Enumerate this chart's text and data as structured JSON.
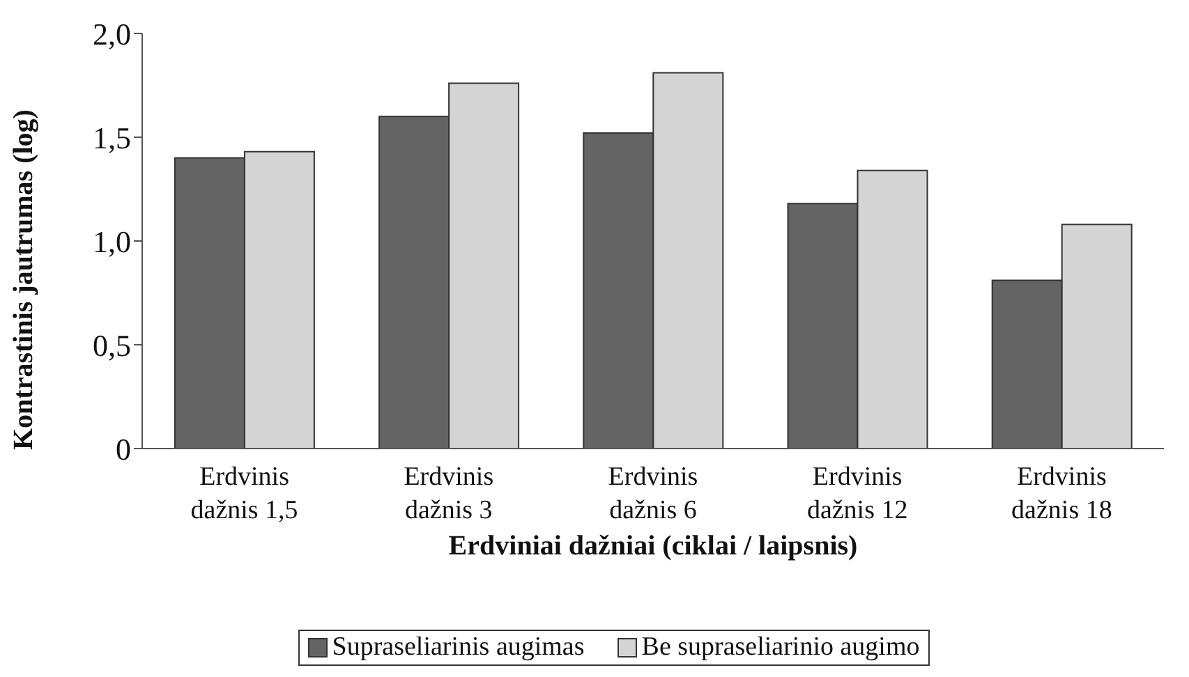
{
  "chart_data": {
    "type": "bar",
    "xlabel": "Erdviniai dažniai (ciklai / laipsnis)",
    "ylabel": "Kontrastinis jautrumas (log)",
    "categories": [
      "Erdvinis\ndažnis 1,5",
      "Erdvinis\ndažnis 3",
      "Erdvinis\ndažnis 6",
      "Erdvinis\ndažnis 12",
      "Erdvinis\ndažnis 18"
    ],
    "series": [
      {
        "name": "Supraseliarinis augimas",
        "color": "#646464",
        "values": [
          1.4,
          1.6,
          1.52,
          1.18,
          0.81
        ]
      },
      {
        "name": "Be supraseliarinio augimo",
        "color": "#d4d4d4",
        "values": [
          1.43,
          1.76,
          1.81,
          1.34,
          1.08
        ]
      }
    ],
    "ylim": [
      0,
      2
    ],
    "yticks": [
      0,
      {
        "value": 0.5,
        "label": "0,5"
      },
      {
        "value": 1,
        "label": "1,0"
      },
      {
        "value": 1.5,
        "label": "1,5"
      },
      {
        "value": 2,
        "label": "2,0"
      }
    ],
    "grid": false,
    "legend": "bottom"
  }
}
